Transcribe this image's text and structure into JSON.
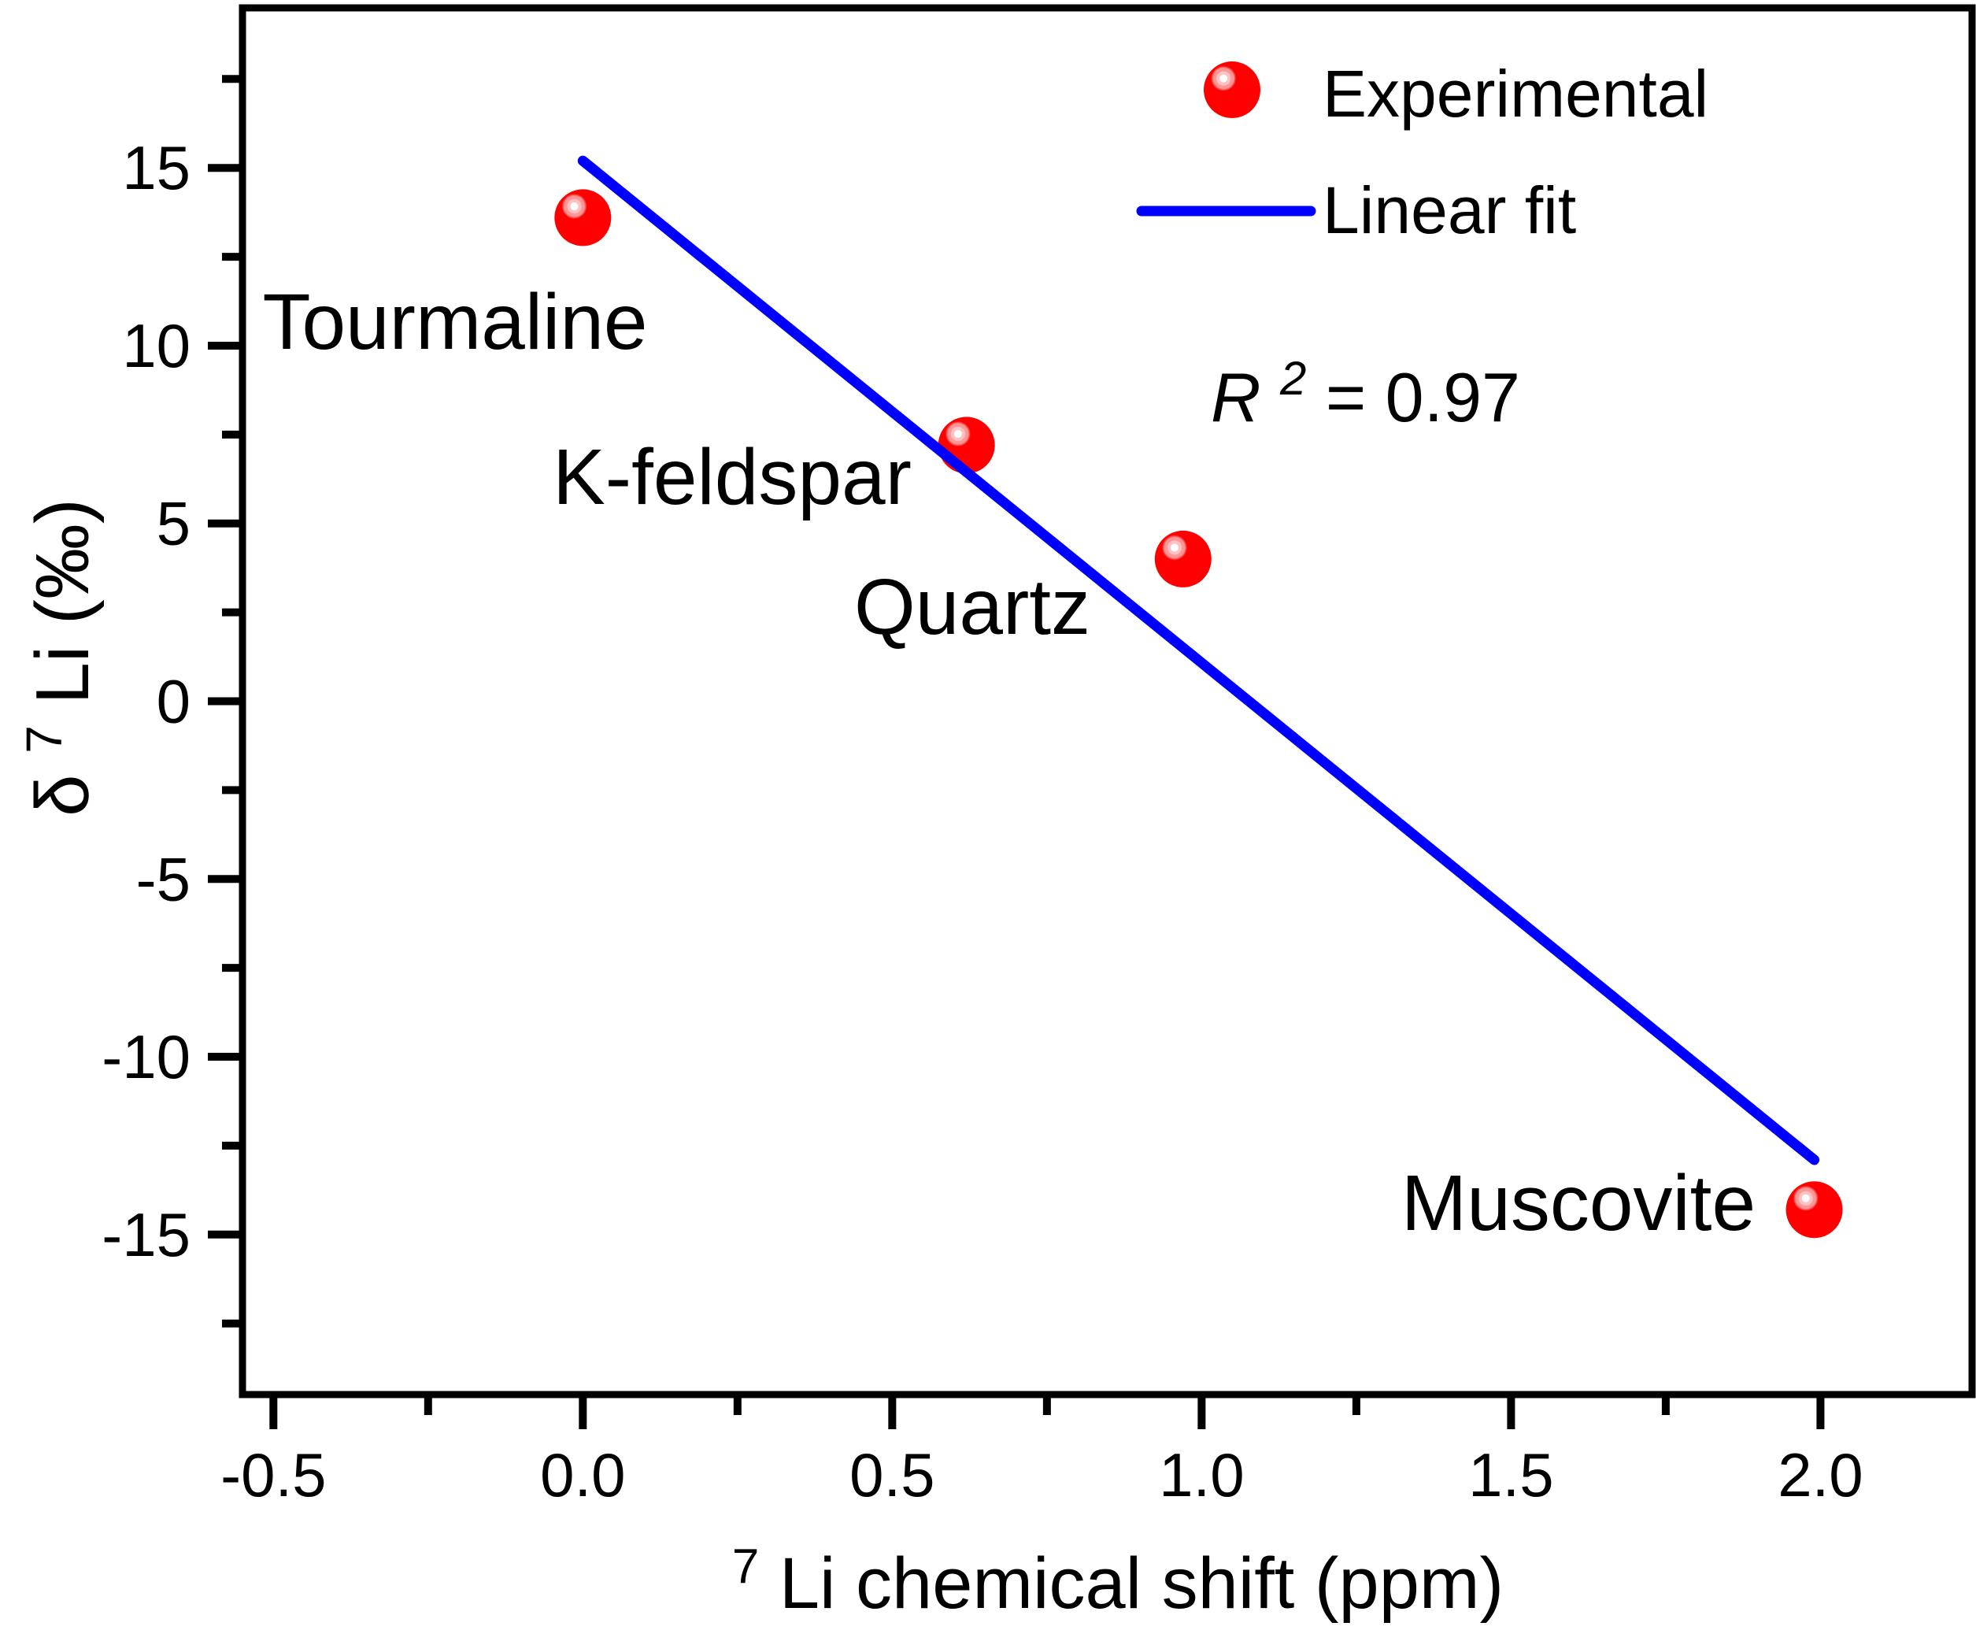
{
  "figure": {
    "background": "#ffffff",
    "frame_color": "#000000",
    "text_color": "#000000"
  },
  "chart_data": {
    "type": "scatter",
    "title": "",
    "x_axis": {
      "title_sup": "7",
      "title_main": "Li chemical shift (ppm)",
      "min": -0.55,
      "max": 2.245,
      "major_ticks": [
        -0.5,
        0.0,
        0.5,
        1.0,
        1.5,
        2.0
      ],
      "tick_labels": [
        "-0.5",
        "0.0",
        "0.5",
        "1.0",
        "1.5",
        "2.0"
      ],
      "minor_step": 0.25,
      "grid": false
    },
    "y_axis": {
      "title_pre": "δ",
      "title_sup": "7",
      "title_main": "Li (‰)",
      "min": -19.5,
      "max": 19.5,
      "major_ticks": [
        15,
        10,
        5,
        0,
        -5,
        -10,
        -15
      ],
      "tick_labels": [
        "15",
        "10",
        "5",
        "0",
        "-5",
        "-10",
        "-15"
      ],
      "minor_step": 2.5,
      "grid": false
    },
    "series": [
      {
        "name": "Experimental",
        "type": "scatter",
        "color": "#ff0000",
        "marker": "sphere",
        "points": [
          {
            "x": 0.0,
            "y": 13.6,
            "label": "Tourmaline"
          },
          {
            "x": 0.62,
            "y": 7.2,
            "label": "K-feldspar"
          },
          {
            "x": 0.97,
            "y": 4.0,
            "label": "Quartz"
          },
          {
            "x": 1.99,
            "y": -14.3,
            "label": "Muscovite"
          }
        ]
      },
      {
        "name": "Linear fit",
        "type": "line",
        "color": "#0000ff",
        "x1": 0.0,
        "y1": 15.2,
        "x2": 1.99,
        "y2": -12.9
      }
    ],
    "annotation": {
      "pre": "R",
      "sup": "2",
      "post": " = 0.97",
      "color": "#0000ff"
    },
    "legend": {
      "position": "top-right",
      "entries": [
        "Experimental",
        "Linear fit"
      ]
    }
  }
}
